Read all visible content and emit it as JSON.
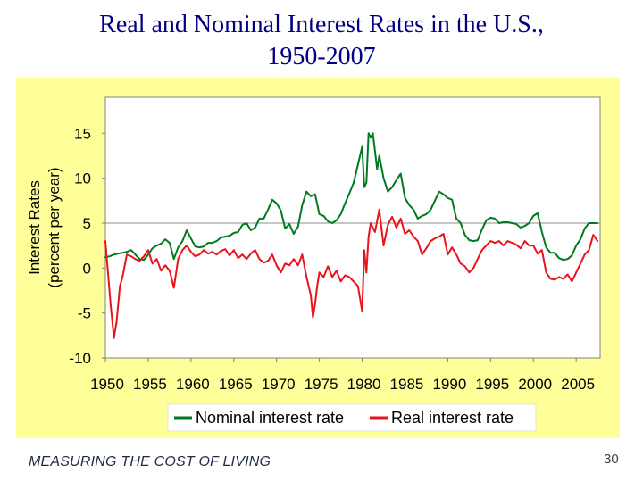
{
  "slide": {
    "title_line1": "Real and Nominal Interest Rates in the U.S.,",
    "title_line2": "1950-2007",
    "footer": "MEASURING THE COST OF LIVING",
    "page_number": "30"
  },
  "colors": {
    "background": "#ffff99",
    "plot_area": "#ffffff",
    "nominal": "#007a1e",
    "real": "#e8141a",
    "title": "#000080"
  },
  "chart_data": {
    "type": "line",
    "title": "",
    "xlabel": "",
    "ylabel_line1": "Interest Rates",
    "ylabel_line2": "(percent per year)",
    "xlim": [
      1950,
      2007.8
    ],
    "ylim": [
      -10,
      19
    ],
    "x_ticks": [
      1950,
      1955,
      1960,
      1965,
      1970,
      1975,
      1980,
      1985,
      1990,
      1995,
      2000,
      2005
    ],
    "x_tick_labels": [
      "1950",
      "1955",
      "1960",
      "1965",
      "1970",
      "1975",
      "1980",
      "1985",
      "1990",
      "1995",
      "2000",
      "2005"
    ],
    "y_ticks": [
      -10,
      -5,
      0,
      5,
      10,
      15
    ],
    "y_tick_labels": [
      "-10",
      "-5",
      "0",
      "5",
      "10",
      "15"
    ],
    "reference_line_y": 5,
    "legend_position": "bottom",
    "series": [
      {
        "name": "Nominal interest rate",
        "color": "#007a1e",
        "x": [
          1950,
          1950.5,
          1951,
          1951.5,
          1952,
          1952.5,
          1953,
          1953.5,
          1954,
          1954.5,
          1955,
          1955.5,
          1956,
          1956.5,
          1957,
          1957.5,
          1958,
          1958.5,
          1959,
          1959.5,
          1960,
          1960.5,
          1961,
          1961.5,
          1962,
          1962.5,
          1963,
          1963.5,
          1964,
          1964.5,
          1965,
          1965.5,
          1966,
          1966.5,
          1967,
          1967.5,
          1968,
          1968.5,
          1969,
          1969.5,
          1970,
          1970.5,
          1971,
          1971.5,
          1972,
          1972.5,
          1973,
          1973.5,
          1974,
          1974.5,
          1975,
          1975.5,
          1976,
          1976.5,
          1977,
          1977.5,
          1978,
          1978.5,
          1979,
          1979.5,
          1980,
          1980.25,
          1980.5,
          1980.75,
          1981,
          1981.25,
          1981.5,
          1981.75,
          1982,
          1982.5,
          1983,
          1983.5,
          1984,
          1984.5,
          1985,
          1985.5,
          1986,
          1986.5,
          1987,
          1987.5,
          1988,
          1988.5,
          1989,
          1989.5,
          1990,
          1990.5,
          1991,
          1991.5,
          1992,
          1992.5,
          1993,
          1993.5,
          1994,
          1994.5,
          1995,
          1995.5,
          1996,
          1996.5,
          1997,
          1997.5,
          1998,
          1998.5,
          1999,
          1999.5,
          2000,
          2000.5,
          2001,
          2001.5,
          2002,
          2002.5,
          2003,
          2003.5,
          2004,
          2004.5,
          2005,
          2005.5,
          2006,
          2006.5,
          2007,
          2007.5
        ],
        "values": [
          1.2,
          1.3,
          1.5,
          1.6,
          1.7,
          1.8,
          2.0,
          1.5,
          1.0,
          0.9,
          1.5,
          2.2,
          2.5,
          2.7,
          3.2,
          2.8,
          1.0,
          2.3,
          3.0,
          4.2,
          3.3,
          2.4,
          2.3,
          2.4,
          2.8,
          2.8,
          3.0,
          3.4,
          3.5,
          3.6,
          3.9,
          4.0,
          4.8,
          5.0,
          4.2,
          4.5,
          5.5,
          5.5,
          6.5,
          7.6,
          7.2,
          6.4,
          4.4,
          4.9,
          3.8,
          4.6,
          7.0,
          8.5,
          8.0,
          8.2,
          6.0,
          5.8,
          5.2,
          5.0,
          5.3,
          6.0,
          7.2,
          8.3,
          9.5,
          11.5,
          13.5,
          9.0,
          9.5,
          15.0,
          14.5,
          15.0,
          13.0,
          11.0,
          12.5,
          10.0,
          8.5,
          9.0,
          9.8,
          10.5,
          7.8,
          7.0,
          6.5,
          5.5,
          5.8,
          6.0,
          6.5,
          7.5,
          8.5,
          8.2,
          7.8,
          7.6,
          5.5,
          5.0,
          3.7,
          3.1,
          3.0,
          3.1,
          4.3,
          5.3,
          5.6,
          5.5,
          5.0,
          5.1,
          5.1,
          5.0,
          4.9,
          4.5,
          4.7,
          5.0,
          5.8,
          6.1,
          4.0,
          2.3,
          1.7,
          1.7,
          1.1,
          0.9,
          1.0,
          1.4,
          2.5,
          3.2,
          4.4,
          5.0,
          5.0,
          5.0
        ]
      },
      {
        "name": "Real interest rate",
        "color": "#e8141a",
        "x": [
          1950,
          1950.3,
          1950.6,
          1951,
          1951.3,
          1951.7,
          1952,
          1952.5,
          1953,
          1953.5,
          1954,
          1954.5,
          1955,
          1955.5,
          1956,
          1956.5,
          1957,
          1957.5,
          1958,
          1958.5,
          1959,
          1959.5,
          1960,
          1960.5,
          1961,
          1961.5,
          1962,
          1962.5,
          1963,
          1963.5,
          1964,
          1964.5,
          1965,
          1965.5,
          1966,
          1966.5,
          1967,
          1967.5,
          1968,
          1968.5,
          1969,
          1969.5,
          1970,
          1970.5,
          1971,
          1971.5,
          1972,
          1972.5,
          1973,
          1973.5,
          1974,
          1974.25,
          1974.5,
          1974.75,
          1975,
          1975.5,
          1976,
          1976.5,
          1977,
          1977.5,
          1978,
          1978.5,
          1979,
          1979.5,
          1980,
          1980.25,
          1980.5,
          1980.75,
          1981,
          1981.5,
          1982,
          1982.5,
          1983,
          1983.5,
          1984,
          1984.5,
          1985,
          1985.5,
          1986,
          1986.5,
          1987,
          1987.5,
          1988,
          1988.5,
          1989,
          1989.5,
          1990,
          1990.5,
          1991,
          1991.5,
          1992,
          1992.5,
          1993,
          1993.5,
          1994,
          1994.5,
          1995,
          1995.5,
          1996,
          1996.5,
          1997,
          1997.5,
          1998,
          1998.5,
          1999,
          1999.5,
          2000,
          2000.5,
          2001,
          2001.5,
          2002,
          2002.5,
          2003,
          2003.5,
          2004,
          2004.5,
          2005,
          2005.5,
          2006,
          2006.5,
          2007,
          2007.5
        ],
        "values": [
          3.0,
          -0.5,
          -4.0,
          -7.8,
          -6.0,
          -2.0,
          -1.0,
          1.5,
          1.3,
          1.0,
          0.8,
          1.3,
          2.0,
          0.5,
          1.0,
          -0.3,
          0.3,
          -0.3,
          -2.2,
          1.0,
          2.0,
          2.5,
          1.8,
          1.3,
          1.5,
          2.0,
          1.6,
          1.8,
          1.5,
          1.9,
          2.1,
          1.4,
          2.0,
          1.1,
          1.5,
          1.0,
          1.6,
          2.0,
          1.0,
          0.6,
          0.8,
          1.5,
          0.3,
          -0.5,
          0.5,
          0.3,
          1.0,
          0.3,
          1.5,
          -1.0,
          -3.0,
          -5.5,
          -4.0,
          -2.0,
          -0.5,
          -1.0,
          0.2,
          -1.0,
          -0.3,
          -1.5,
          -0.8,
          -1.0,
          -1.5,
          -2.0,
          -4.8,
          2.0,
          -0.5,
          3.5,
          5.0,
          4.0,
          6.5,
          2.5,
          4.8,
          5.7,
          4.5,
          5.5,
          3.8,
          4.2,
          3.5,
          3.0,
          1.5,
          2.2,
          3.0,
          3.3,
          3.5,
          3.8,
          1.5,
          2.3,
          1.5,
          0.5,
          0.2,
          -0.5,
          0.0,
          1.0,
          2.0,
          2.5,
          3.0,
          2.8,
          3.0,
          2.5,
          3.0,
          2.8,
          2.6,
          2.2,
          3.0,
          2.5,
          2.5,
          1.6,
          2.0,
          -0.5,
          -1.2,
          -1.3,
          -1.0,
          -1.2,
          -0.7,
          -1.5,
          -0.5,
          0.5,
          1.5,
          2.0,
          3.7,
          3.0
        ]
      }
    ]
  }
}
